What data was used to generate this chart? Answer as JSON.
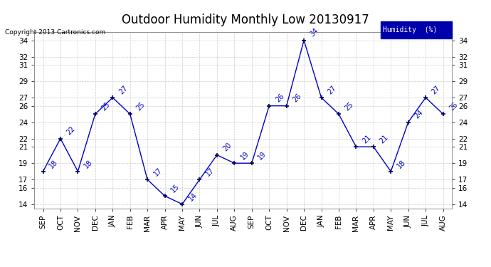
{
  "title": "Outdoor Humidity Monthly Low 20130917",
  "copyright": "Copyright 2013 Cartronics.com",
  "legend_label": "Humidity  (%)",
  "months": [
    "SEP",
    "OCT",
    "NOV",
    "DEC",
    "JAN",
    "FEB",
    "MAR",
    "APR",
    "MAY",
    "JUN",
    "JUL",
    "AUG",
    "SEP",
    "OCT",
    "NOV",
    "DEC",
    "JAN",
    "FEB",
    "MAR",
    "APR",
    "MAY",
    "JUN",
    "JUL",
    "AUG"
  ],
  "values": [
    18,
    22,
    18,
    25,
    27,
    25,
    17,
    15,
    14,
    17,
    20,
    19,
    19,
    26,
    26,
    34,
    27,
    25,
    21,
    21,
    18,
    24,
    27,
    25
  ],
  "line_color": "#0000cc",
  "marker_color": "#000055",
  "background_color": "#ffffff",
  "grid_color": "#cccccc",
  "ylim_min": 13.5,
  "ylim_max": 35,
  "yticks": [
    14,
    16,
    17,
    19,
    21,
    22,
    24,
    26,
    27,
    29,
    31,
    32,
    34
  ],
  "title_fontsize": 12,
  "label_fontsize": 7.5,
  "tick_fontsize": 7.5,
  "annot_fontsize": 7,
  "legend_bg": "#0000aa",
  "legend_text_color": "#ffffff"
}
